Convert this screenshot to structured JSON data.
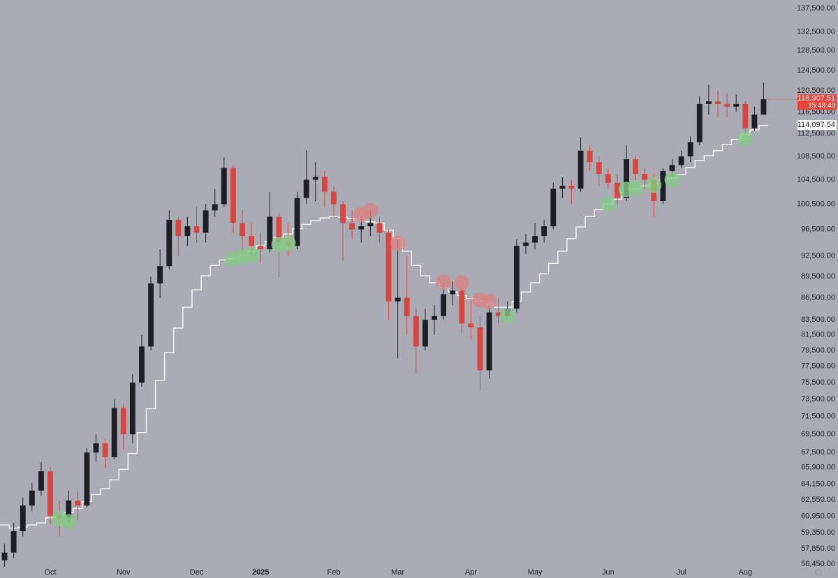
{
  "chart_data": {
    "type": "candlestick",
    "categories": [
      null,
      null,
      null,
      null,
      null,
      "Oct",
      null,
      null,
      null,
      null,
      null,
      null,
      null,
      "Nov",
      null,
      null,
      null,
      null,
      null,
      null,
      null,
      "Dec",
      null,
      null,
      null,
      null,
      null,
      null,
      "2025",
      null,
      null,
      null,
      null,
      null,
      null,
      null,
      "Feb",
      null,
      null,
      null,
      null,
      null,
      null,
      "Mar",
      null,
      null,
      null,
      null,
      null,
      null,
      null,
      "Apr",
      null,
      null,
      null,
      null,
      null,
      null,
      "May",
      null,
      null,
      null,
      null,
      null,
      null,
      null,
      "Jun",
      null,
      null,
      null,
      null,
      null,
      null,
      null,
      "Jul",
      null,
      null,
      null,
      null,
      null,
      null,
      "Aug",
      null,
      null
    ],
    "open": [
      56800,
      57500,
      59500,
      62000,
      63500,
      65500,
      61000,
      60800,
      62500,
      62000,
      67500,
      68500,
      67000,
      72500,
      69500,
      75500,
      80000,
      88500,
      91000,
      98000,
      95500,
      97000,
      96000,
      99500,
      100500,
      106500,
      97500,
      95500,
      94000,
      93500,
      98500,
      94500,
      94000,
      101500,
      104500,
      105000,
      102500,
      100500,
      97500,
      96500,
      97000,
      97500,
      96000,
      86000,
      86500,
      84000,
      80000,
      83500,
      84000,
      87000,
      87500,
      83000,
      82500,
      77000,
      84500,
      84000,
      85000,
      94000,
      94500,
      95500,
      97000,
      103000,
      103500,
      103000,
      109500,
      107500,
      105500,
      104000,
      101500,
      108000,
      105500,
      104500,
      101000,
      106000,
      107000,
      108500,
      111000,
      118000,
      118500,
      118000,
      117500,
      118000,
      113500,
      116000
    ],
    "high": [
      58300,
      60300,
      62800,
      64300,
      66500,
      66000,
      62500,
      63500,
      63400,
      68000,
      69500,
      69000,
      73500,
      73000,
      76500,
      81500,
      89500,
      93500,
      99500,
      98500,
      98500,
      100000,
      100500,
      103000,
      108300,
      107000,
      99500,
      97500,
      96000,
      102500,
      99000,
      97500,
      102500,
      109500,
      107500,
      106000,
      103500,
      101000,
      99500,
      98500,
      99500,
      98500,
      96500,
      95000,
      92500,
      85000,
      85000,
      85500,
      88500,
      88800,
      88000,
      86500,
      84000,
      85500,
      86500,
      86000,
      95000,
      95800,
      97500,
      98000,
      104000,
      105000,
      104500,
      111900,
      110500,
      108500,
      106500,
      105500,
      110500,
      108500,
      106500,
      105500,
      106500,
      108000,
      109500,
      112000,
      119500,
      121700,
      120500,
      120000,
      119800,
      118500,
      117500,
      122100
    ],
    "low": [
      56200,
      57000,
      59000,
      61500,
      63000,
      60200,
      59000,
      60200,
      60500,
      61800,
      66500,
      65800,
      66800,
      67800,
      68500,
      75000,
      79500,
      86500,
      90500,
      92500,
      94000,
      94500,
      94500,
      98500,
      100000,
      96000,
      92500,
      92500,
      91500,
      93000,
      89400,
      92500,
      93500,
      100500,
      101000,
      100000,
      98500,
      91800,
      95000,
      94500,
      95500,
      94500,
      83500,
      78500,
      81500,
      76600,
      79500,
      81500,
      83500,
      85500,
      81800,
      81000,
      74500,
      76000,
      83000,
      83500,
      84500,
      92800,
      93500,
      94500,
      96500,
      101500,
      100500,
      102500,
      106000,
      103500,
      103000,
      100500,
      101000,
      104000,
      103000,
      98500,
      100500,
      105000,
      106500,
      107500,
      110500,
      116000,
      115500,
      115500,
      116500,
      112000,
      113000,
      116000
    ],
    "close": [
      57500,
      59500,
      62000,
      63500,
      65500,
      61000,
      60800,
      62500,
      62000,
      67500,
      68500,
      67000,
      72500,
      69500,
      75500,
      80000,
      88500,
      91000,
      98000,
      95500,
      97000,
      96000,
      99500,
      100500,
      106500,
      97500,
      95500,
      94000,
      93500,
      98500,
      94500,
      94000,
      101500,
      104500,
      105000,
      102500,
      100500,
      97500,
      96500,
      97000,
      97500,
      96000,
      86000,
      86500,
      84000,
      80000,
      83500,
      84000,
      87000,
      87500,
      83000,
      82500,
      77000,
      84500,
      84000,
      85000,
      94000,
      94500,
      95500,
      97000,
      103000,
      103500,
      103000,
      109500,
      107500,
      105500,
      104000,
      101500,
      108000,
      105500,
      104500,
      101000,
      106000,
      107000,
      108500,
      111000,
      118000,
      118500,
      118000,
      117500,
      118000,
      113500,
      116000,
      118900
    ],
    "up_color": "#1e1f24",
    "down_color": "#d9453f",
    "moving_average": {
      "color": "#ffffff",
      "values": [
        60100,
        59800,
        59900,
        60100,
        60300,
        60800,
        60900,
        61300,
        61700,
        62400,
        63100,
        63700,
        64600,
        65700,
        67400,
        69700,
        72400,
        75800,
        79200,
        82400,
        85200,
        87600,
        89600,
        91100,
        91900,
        92100,
        92600,
        93200,
        94000,
        94700,
        95300,
        95800,
        96600,
        97300,
        97900,
        98300,
        98500,
        98400,
        98200,
        97900,
        97700,
        97500,
        96400,
        95100,
        93200,
        91100,
        89600,
        88600,
        87900,
        87300,
        86800,
        86400,
        86000,
        85600,
        85200,
        85200,
        86000,
        87300,
        88600,
        89900,
        91400,
        93200,
        95100,
        96900,
        98500,
        99600,
        100500,
        101300,
        102400,
        103000,
        103500,
        103900,
        104400,
        104800,
        105400,
        106600,
        107800,
        108600,
        109500,
        110600,
        111500,
        112400,
        113200,
        114000
      ]
    },
    "signals": [
      {
        "color": "#86c986",
        "values": [
          null,
          null,
          null,
          null,
          null,
          null,
          60700,
          60400,
          null,
          null,
          null,
          null,
          null,
          null,
          null,
          null,
          null,
          null,
          null,
          null,
          null,
          null,
          null,
          null,
          null,
          92000,
          92400,
          92700,
          null,
          null,
          94200,
          94400,
          null,
          null,
          null,
          null,
          null,
          null,
          null,
          null,
          null,
          null,
          null,
          null,
          null,
          null,
          null,
          null,
          null,
          null,
          null,
          null,
          null,
          null,
          null,
          84000,
          null,
          null,
          null,
          null,
          null,
          null,
          null,
          null,
          null,
          null,
          100500,
          null,
          102900,
          103200,
          null,
          103600,
          null,
          104500,
          null,
          null,
          null,
          null,
          null,
          null,
          null,
          111600,
          null,
          null
        ]
      },
      {
        "color": "#d88484",
        "values": [
          null,
          null,
          null,
          null,
          null,
          null,
          null,
          null,
          null,
          null,
          null,
          null,
          null,
          null,
          null,
          null,
          null,
          null,
          null,
          null,
          null,
          null,
          null,
          null,
          null,
          null,
          null,
          null,
          null,
          null,
          null,
          null,
          null,
          null,
          null,
          null,
          null,
          null,
          null,
          98800,
          99500,
          null,
          null,
          94400,
          null,
          null,
          null,
          null,
          88700,
          null,
          88600,
          null,
          86200,
          86000,
          null,
          null,
          null,
          null,
          null,
          null,
          null,
          null,
          null,
          null,
          null,
          null,
          null,
          null,
          null,
          null,
          null,
          null,
          null,
          null,
          null,
          null,
          null,
          null,
          null,
          null,
          null,
          null,
          null,
          null
        ]
      }
    ],
    "last_price": {
      "value": 118907.51,
      "label": "118,907.51"
    },
    "countdown": "15:48:48",
    "ma_last": {
      "value": 114097.54,
      "label": "114,097.54"
    },
    "log_y": true,
    "grid": false,
    "ylim": [
      56200,
      139400
    ],
    "yticks": [
      {
        "value": 56450,
        "label": "56,450.00"
      },
      {
        "value": 57850,
        "label": "57,850.00"
      },
      {
        "value": 59350,
        "label": "59,350.00"
      },
      {
        "value": 60950,
        "label": "60,950.00"
      },
      {
        "value": 62550,
        "label": "62,550.00"
      },
      {
        "value": 64150,
        "label": "64,150.00"
      },
      {
        "value": 65900,
        "label": "65,900.00"
      },
      {
        "value": 67500,
        "label": "67,500.00"
      },
      {
        "value": 69500,
        "label": "69,500.00"
      },
      {
        "value": 71500,
        "label": "71,500.00"
      },
      {
        "value": 73500,
        "label": "73,500.00"
      },
      {
        "value": 75500,
        "label": "75,500.00"
      },
      {
        "value": 77500,
        "label": "77,500.00"
      },
      {
        "value": 79500,
        "label": "79,500.00"
      },
      {
        "value": 81500,
        "label": "81,500.00"
      },
      {
        "value": 83500,
        "label": "83,500.00"
      },
      {
        "value": 86500,
        "label": "86,500.00"
      },
      {
        "value": 89500,
        "label": "89,500.00"
      },
      {
        "value": 92500,
        "label": "92,500.00"
      },
      {
        "value": 96500,
        "label": "96,500.00"
      },
      {
        "value": 100500,
        "label": "100,500.00"
      },
      {
        "value": 104500,
        "label": "104,500.00"
      },
      {
        "value": 108500,
        "label": "108,500.00"
      },
      {
        "value": 112500,
        "label": "112,500.00"
      },
      {
        "value": 116500,
        "label": "116,500.00"
      },
      {
        "value": 120500,
        "label": "120,500.00"
      },
      {
        "value": 124500,
        "label": "124,500.00"
      },
      {
        "value": 128500,
        "label": "128,500.00"
      },
      {
        "value": 132500,
        "label": "132,500.00"
      },
      {
        "value": 137500,
        "label": "137,500.00"
      }
    ]
  }
}
